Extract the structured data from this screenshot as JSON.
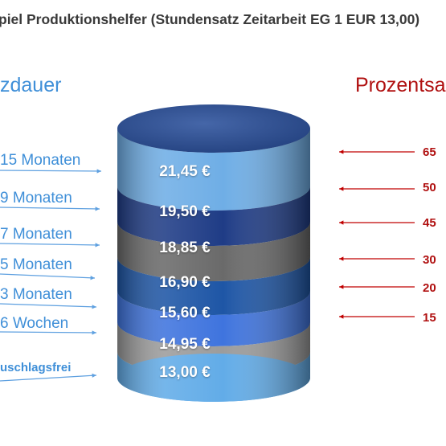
{
  "title": "piel Produktionshelfer (Stundensatz Zeitarbeit EG 1 EUR 13,00)",
  "left_heading": "zdauer",
  "right_heading": "Prozentsa",
  "durations": [
    "15 Monaten",
    "9 Monaten",
    "7 Monaten",
    "5 Monaten",
    "3 Monaten",
    "6 Wochen",
    "uschlagsfrei"
  ],
  "percentages": [
    "65",
    "50",
    "45",
    "30",
    "20",
    "15"
  ],
  "layers": [
    {
      "value": "21,45 €",
      "color": "#6faee6"
    },
    {
      "value": "19,50 €",
      "color": "#1f3c86"
    },
    {
      "value": "18,85 €",
      "color": "#6a6a6a"
    },
    {
      "value": "16,90 €",
      "color": "#1e56a6"
    },
    {
      "value": "15,60 €",
      "color": "#3f74de"
    },
    {
      "value": "14,95 €",
      "color": "#9c9c9c"
    },
    {
      "value": "13,00 €",
      "color": "#62ace8"
    }
  ],
  "colors": {
    "left_arrow": "#5ea0e0",
    "right_arrow": "#c00000",
    "top_cap": "#2d4d8e"
  }
}
